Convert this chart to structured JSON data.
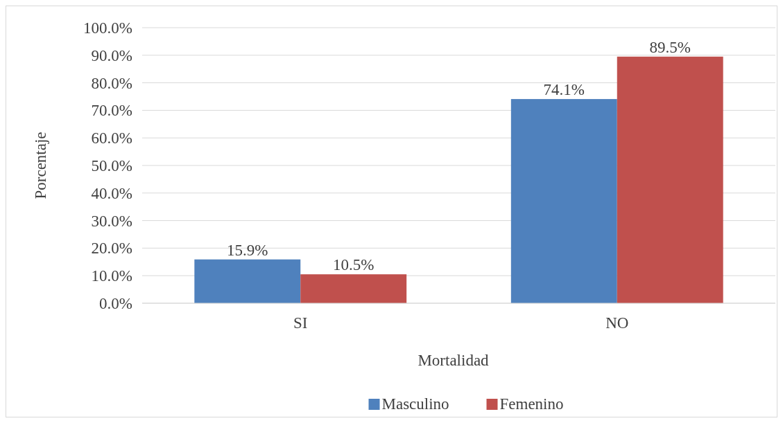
{
  "chart_data": {
    "type": "bar",
    "xlabel": "Mortalidad",
    "ylabel": "Porcentaje",
    "categories": [
      "SI",
      "NO"
    ],
    "series": [
      {
        "name": "Masculino",
        "color": "#4f81bd",
        "values": [
          15.9,
          74.1
        ],
        "value_labels": [
          "15.9%",
          "74.1%"
        ]
      },
      {
        "name": "Femenino",
        "color": "#c0504d",
        "values": [
          10.5,
          89.5
        ],
        "value_labels": [
          "10.5%",
          "89.5%"
        ]
      }
    ],
    "ylim": [
      0,
      100
    ],
    "yticks": [
      {
        "value": 0,
        "label": "0.0%"
      },
      {
        "value": 10,
        "label": "10.0%"
      },
      {
        "value": 20,
        "label": "20.0%"
      },
      {
        "value": 30,
        "label": "30.0%"
      },
      {
        "value": 40,
        "label": "40.0%"
      },
      {
        "value": 50,
        "label": "50.0%"
      },
      {
        "value": 60,
        "label": "60.0%"
      },
      {
        "value": 70,
        "label": "70.0%"
      },
      {
        "value": 80,
        "label": "80.0%"
      },
      {
        "value": 90,
        "label": "90.0%"
      },
      {
        "value": 100,
        "label": "100.0%"
      }
    ],
    "grid": "y",
    "legend": "bottom"
  }
}
